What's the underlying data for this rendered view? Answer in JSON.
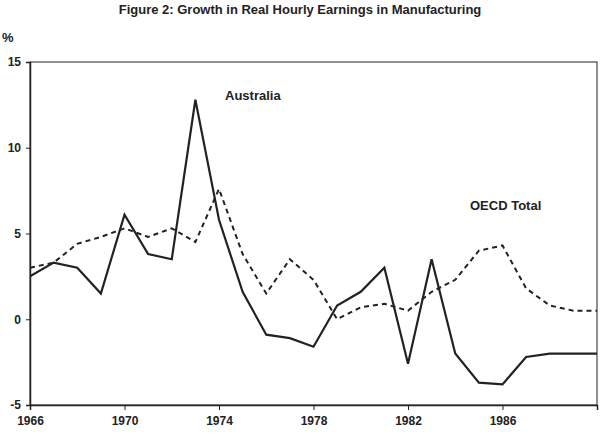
{
  "chart_data": {
    "type": "line",
    "title": "Figure 2: Growth in Real Hourly Earnings in Manufacturing",
    "y_label": "%",
    "x": [
      1966,
      1967,
      1968,
      1969,
      1970,
      1971,
      1972,
      1973,
      1974,
      1975,
      1976,
      1977,
      1978,
      1979,
      1980,
      1981,
      1982,
      1983,
      1984,
      1985,
      1986,
      1987,
      1988,
      1989,
      1990
    ],
    "xlim": [
      1966,
      1990
    ],
    "xticks": [
      1966,
      1970,
      1974,
      1978,
      1982,
      1986
    ],
    "ylim": [
      -5,
      15
    ],
    "yticks": [
      -5,
      0,
      5,
      10,
      15
    ],
    "grid": false,
    "series": [
      {
        "name": "Australia",
        "color": "#222222",
        "line_style": "solid",
        "values": [
          2.5,
          3.3,
          3.0,
          1.5,
          6.1,
          3.8,
          3.5,
          12.8,
          5.8,
          1.6,
          -0.9,
          -1.1,
          -1.6,
          0.8,
          1.6,
          3.0,
          -2.6,
          3.5,
          -2.0,
          -3.7,
          -3.8,
          -2.2,
          -2.0,
          -2.0,
          -2.0
        ]
      },
      {
        "name": "OECD Total",
        "color": "#222222",
        "line_style": "dashed",
        "values": [
          3.0,
          3.3,
          4.4,
          4.8,
          5.3,
          4.8,
          5.3,
          4.5,
          7.6,
          3.8,
          1.5,
          3.5,
          2.3,
          0.0,
          0.7,
          0.9,
          0.5,
          1.6,
          2.3,
          4.0,
          4.3,
          1.8,
          0.8,
          0.5,
          0.5
        ]
      }
    ]
  }
}
